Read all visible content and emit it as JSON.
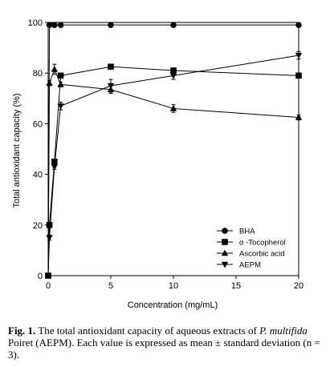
{
  "chart_data": {
    "type": "line",
    "xlabel": "Concentration (mg/mL)",
    "ylabel": "Total antioxidant capacity (%)",
    "xlim": [
      0,
      20
    ],
    "ylim": [
      0,
      100
    ],
    "xticks": [
      "0",
      "5",
      "10",
      "15",
      "20"
    ],
    "yticks": [
      "0",
      "20",
      "40",
      "60",
      "80",
      "100"
    ],
    "grid": false,
    "legend_position": "bottom-right",
    "series": [
      {
        "name": "BHA",
        "marker": "circle",
        "x": [
          0,
          0.1,
          0.5,
          1,
          5,
          10,
          20
        ],
        "y": [
          0,
          99,
          99,
          99,
          99,
          99,
          99
        ],
        "err": [
          0,
          0,
          0,
          0,
          0,
          0,
          0
        ]
      },
      {
        "name": "α -Tocopherol",
        "marker": "square",
        "x": [
          0,
          0.1,
          0.5,
          1,
          5,
          10,
          20
        ],
        "y": [
          0,
          20,
          45,
          79,
          82.5,
          81,
          79
        ],
        "err": [
          0,
          1,
          1,
          1,
          1,
          1,
          1
        ]
      },
      {
        "name": "Ascorbic acid",
        "marker": "triangle-up",
        "x": [
          0,
          0.1,
          0.5,
          1,
          5,
          10,
          20
        ],
        "y": [
          0,
          76,
          81.5,
          75.5,
          73.5,
          66,
          62.5
        ],
        "err": [
          0,
          1,
          2,
          1,
          1.5,
          1.5,
          1
        ]
      },
      {
        "name": "AEPM",
        "marker": "triangle-down",
        "x": [
          0,
          0.1,
          0.5,
          1,
          5,
          10,
          20
        ],
        "y": [
          0,
          15,
          43,
          67,
          75,
          79,
          87
        ],
        "err": [
          0,
          1,
          1,
          1.5,
          2.5,
          1.5,
          1.5
        ]
      }
    ]
  },
  "caption": {
    "label": "Fig. 1.",
    "text1": " The total antioxidant capacity of aqueous extracts of ",
    "species": "P. multifida",
    "text2": " Poiret (AEPM). Each value is expressed as mean ± standard deviation (n = 3)."
  }
}
